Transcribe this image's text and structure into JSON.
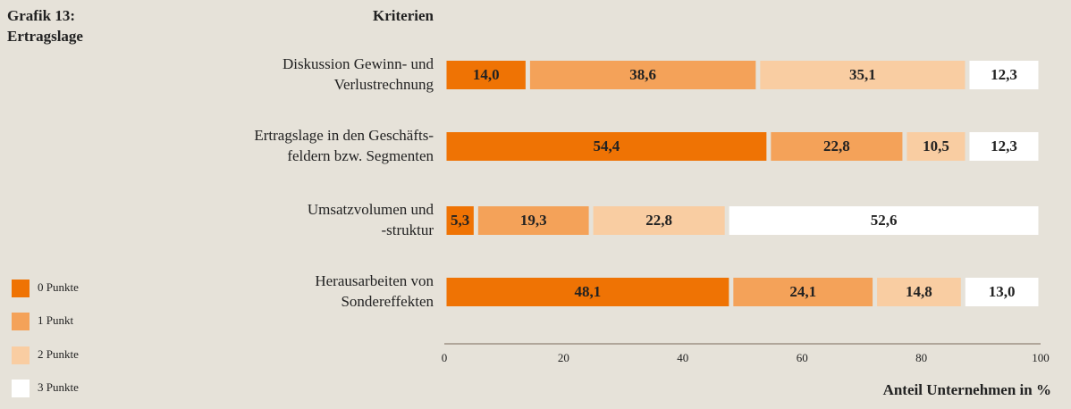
{
  "chart_data": {
    "type": "stacked_bar_horizontal",
    "title": "Grafik 13:\nErtragslage",
    "category_header": "Kriterien",
    "x_label": "Anteil Unternehmen in %",
    "categories": [
      "Diskussion Gewinn- und\nVerlustrechnung",
      "Ertragslage in den Geschäfts-\nfeldern bzw. Segmenten",
      "Umsatzvolumen und\n-struktur",
      "Herausarbeiten von\nSondereffekten"
    ],
    "series": [
      {
        "name": "0 Punkte",
        "color": "#ef7304",
        "values": [
          14.0,
          54.4,
          5.3,
          48.1
        ],
        "value_labels": [
          "14,0",
          "54,4",
          "5,3",
          "48,1"
        ]
      },
      {
        "name": "1 Punkt",
        "color": "#f4a259",
        "values": [
          38.6,
          22.8,
          19.3,
          24.1
        ],
        "value_labels": [
          "38,6",
          "22,8",
          "19,3",
          "24,1"
        ]
      },
      {
        "name": "2 Punkte",
        "color": "#f9cda2",
        "values": [
          35.1,
          10.5,
          22.8,
          14.8
        ],
        "value_labels": [
          "35,1",
          "10,5",
          "22,8",
          "14,8"
        ]
      },
      {
        "name": "3 Punkte",
        "color": "#ffffff",
        "values": [
          12.3,
          12.3,
          52.6,
          13.0
        ],
        "value_labels": [
          "12,3",
          "12,3",
          "52,6",
          "13,0"
        ]
      }
    ],
    "xlim": [
      0,
      100
    ],
    "xticks": [
      0,
      20,
      40,
      60,
      80,
      100
    ]
  }
}
